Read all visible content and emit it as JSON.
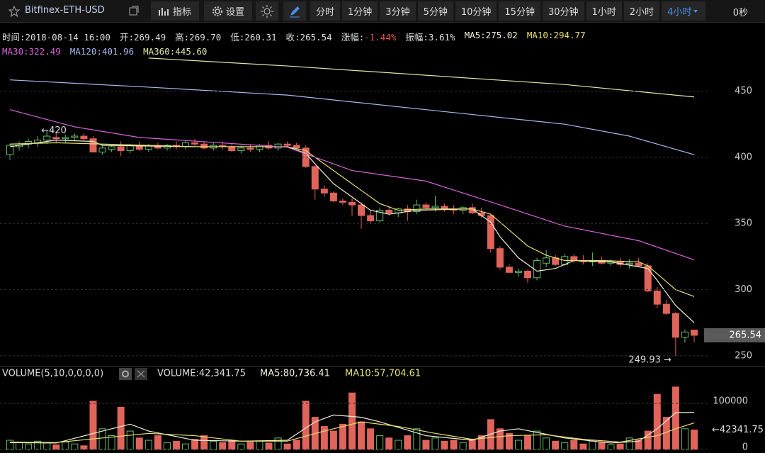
{
  "toolbar": {
    "symbol": "Bitfinex-ETH-USD",
    "buttons": [
      "指标",
      "设置"
    ],
    "intervals": [
      "分时",
      "1分钟",
      "3分钟",
      "5分钟",
      "10分钟",
      "15分钟",
      "30分钟",
      "1小时",
      "2小时",
      "4小时"
    ],
    "active_interval": "4小时",
    "timer": "0秒"
  },
  "chart_data": [
    {
      "type": "candlestick",
      "info": [
        {
          "label": "时间:",
          "value": "2018-08-14 16:00"
        },
        {
          "label": "开:",
          "value": "269.49"
        },
        {
          "label": "高:",
          "value": "269.70"
        },
        {
          "label": "低:",
          "value": "260.31"
        },
        {
          "label": "收:",
          "value": "265.54"
        },
        {
          "label": "涨幅:",
          "value": "-1.44%",
          "color": "#e5574c"
        },
        {
          "label": "振幅:",
          "value": "3.61%"
        }
      ],
      "open": [
        402,
        408,
        410,
        411,
        413,
        415,
        414,
        415,
        416,
        414,
        404,
        406,
        408,
        405,
        409,
        406,
        409,
        407,
        409,
        408,
        411,
        410,
        407,
        409,
        408,
        405,
        407,
        406,
        409,
        407,
        410,
        409,
        407,
        393,
        376,
        373,
        367,
        366,
        364,
        356,
        352,
        360,
        358,
        361,
        359,
        364,
        362,
        363,
        361,
        360,
        362,
        358,
        356,
        331,
        317,
        313,
        314,
        309,
        320,
        324,
        319,
        325,
        322,
        321,
        322,
        320,
        321,
        319,
        320,
        318,
        299,
        289,
        282,
        264,
        269.49
      ],
      "high": [
        410,
        412,
        414,
        416,
        420,
        418,
        417,
        418,
        418,
        416,
        409,
        409,
        412,
        410,
        412,
        410,
        411,
        410,
        412,
        413,
        414,
        412,
        411,
        412,
        410,
        409,
        410,
        410,
        412,
        411,
        412,
        411,
        409,
        394,
        379,
        374,
        369,
        369,
        366,
        360,
        362,
        363,
        362,
        364,
        368,
        366,
        371,
        365,
        364,
        363,
        365,
        362,
        357,
        333,
        319,
        316,
        315,
        324,
        330,
        326,
        327,
        327,
        326,
        328,
        325,
        323,
        324,
        323,
        324,
        320,
        302,
        292,
        283,
        270,
        269.7
      ],
      "low": [
        398,
        405,
        407,
        408,
        410,
        411,
        411,
        412,
        413,
        404,
        402,
        404,
        401,
        403,
        405,
        404,
        406,
        405,
        406,
        406,
        408,
        406,
        405,
        406,
        404,
        403,
        404,
        404,
        406,
        405,
        408,
        406,
        392,
        368,
        370,
        366,
        364,
        356,
        346,
        350,
        351,
        356,
        355,
        352,
        357,
        360,
        359,
        359,
        357,
        357,
        357,
        354,
        328,
        315,
        313,
        310,
        305,
        307,
        317,
        318,
        318,
        320,
        319,
        318,
        319,
        318,
        317,
        316,
        317,
        298,
        286,
        281,
        249.93,
        260,
        260.31
      ],
      "close": [
        409,
        410,
        412,
        413,
        416,
        414,
        415,
        416,
        414,
        404,
        407,
        408,
        405,
        409,
        406,
        409,
        407,
        409,
        408,
        411,
        410,
        407,
        409,
        408,
        405,
        407,
        406,
        409,
        407,
        410,
        409,
        407,
        393,
        376,
        373,
        367,
        366,
        364,
        356,
        352,
        360,
        358,
        361,
        359,
        364,
        362,
        363,
        361,
        360,
        362,
        358,
        356,
        331,
        317,
        313,
        314,
        309,
        322,
        324,
        319,
        325,
        322,
        321,
        322,
        320,
        321,
        319,
        320,
        318,
        299,
        289,
        282,
        264,
        268,
        265.54
      ],
      "up_color": "#62c06a",
      "down_color": "#e0645a",
      "series": [
        {
          "name": "MA5:275.02",
          "color": "#f2f0d8",
          "x": [
            0,
            5,
            9,
            10,
            20,
            30,
            32,
            33,
            35,
            37,
            39,
            41,
            44,
            50,
            52,
            53,
            55,
            57,
            59,
            61,
            65,
            69,
            70,
            72,
            74
          ],
          "values": [
            408,
            413,
            412,
            409,
            408,
            408,
            403,
            395,
            380,
            370,
            360,
            357,
            360,
            361,
            351,
            340,
            324,
            314,
            316,
            322,
            321,
            316,
            307,
            288,
            275.02
          ]
        },
        {
          "name": "MA10:294.77",
          "color": "#e8e070",
          "x": [
            0,
            5,
            10,
            20,
            30,
            32,
            34,
            36,
            38,
            40,
            42,
            45,
            50,
            52,
            54,
            56,
            58,
            60,
            64,
            68,
            69,
            70,
            72,
            74
          ],
          "values": [
            410,
            411,
            410,
            408,
            408,
            405,
            395,
            385,
            375,
            365,
            360,
            361,
            361,
            357,
            345,
            333,
            326,
            322,
            322,
            321,
            318,
            312,
            300,
            294.77
          ]
        },
        {
          "name": "MA30:322.49",
          "color": "#d864d8",
          "x": [
            0,
            7,
            14,
            30,
            37,
            45,
            53,
            60,
            68,
            74
          ],
          "values": [
            436,
            423,
            415,
            407.6,
            390,
            382,
            364,
            348,
            337,
            322.49
          ]
        },
        {
          "name": "MA120:401.96",
          "color": "#aab6ec",
          "x": [
            0,
            15,
            30,
            45,
            60,
            67,
            74
          ],
          "values": [
            458.5,
            453,
            447,
            436,
            425,
            416,
            401.96
          ]
        },
        {
          "name": "MA360:445.60",
          "color": "#dfe6a8",
          "x": [
            15,
            30,
            45,
            60,
            74
          ],
          "values": [
            475,
            469,
            462,
            455,
            445.6
          ]
        }
      ],
      "ylim": [
        243,
        476
      ],
      "yticks": [
        250,
        300,
        350,
        400,
        450
      ],
      "grid": true,
      "annotations": [
        {
          "text": "←420",
          "x": 4,
          "value": 420
        },
        {
          "text": "249.93 →",
          "x": 72,
          "value": 249.93
        }
      ],
      "last_price": {
        "text": "265.54",
        "value": 265.54
      }
    },
    {
      "type": "bar",
      "title": "VOLUME(5,10,0,0,0,0)",
      "readout": "VOLUME:42,341.75",
      "values": [
        20000,
        15000,
        12000,
        18000,
        14000,
        10000,
        16000,
        12000,
        8000,
        105000,
        45000,
        30000,
        92000,
        40000,
        25000,
        20000,
        30000,
        15000,
        18000,
        12000,
        22000,
        30000,
        18000,
        15000,
        20000,
        12000,
        16000,
        18000,
        14000,
        25000,
        12000,
        20000,
        105000,
        70000,
        50000,
        40000,
        55000,
        123000,
        60000,
        45000,
        30000,
        25000,
        20000,
        30000,
        45000,
        20000,
        25000,
        18000,
        20000,
        15000,
        22000,
        30000,
        65000,
        45000,
        35000,
        20000,
        30000,
        40000,
        25000,
        18000,
        15000,
        20000,
        12000,
        18000,
        15000,
        10000,
        12000,
        25000,
        20000,
        40000,
        120000,
        70000,
        136000,
        45000,
        42341.75
      ],
      "series": [
        {
          "name": "MA5:80,736.41",
          "color": "#f2f0d8",
          "x": [
            0,
            5,
            10,
            13,
            15,
            20,
            25,
            30,
            33,
            35,
            38,
            40,
            45,
            50,
            53,
            55,
            60,
            65,
            68,
            70,
            72,
            74
          ],
          "values": [
            15000,
            14000,
            40000,
            55000,
            40000,
            20000,
            18000,
            20000,
            60000,
            75000,
            70000,
            60000,
            30000,
            20000,
            40000,
            45000,
            25000,
            14000,
            18000,
            45000,
            80000,
            80736.41
          ]
        },
        {
          "name": "MA10:57,704.61",
          "color": "#e8e070",
          "x": [
            0,
            5,
            10,
            15,
            20,
            25,
            30,
            34,
            38,
            42,
            46,
            50,
            54,
            58,
            62,
            66,
            70,
            72,
            74
          ],
          "values": [
            16000,
            15000,
            25000,
            35000,
            30000,
            18000,
            18000,
            40000,
            60000,
            50000,
            35000,
            22000,
            30000,
            32000,
            22000,
            16000,
            30000,
            45000,
            57704.61
          ]
        }
      ],
      "ylim": [
        0,
        145000
      ],
      "yticks": [
        0,
        100000
      ],
      "grid": true,
      "annotation": {
        "text": "←42341.75",
        "value": 42341.75
      }
    }
  ]
}
